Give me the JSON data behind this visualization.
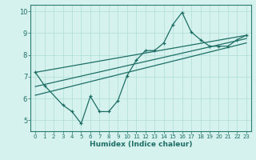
{
  "xlabel": "Humidex (Indice chaleur)",
  "background_color": "#d5f2ee",
  "line_color": "#1e6e65",
  "grid_color": "#b0ddd8",
  "spine_color": "#2a7a70",
  "xlim": [
    -0.5,
    23.5
  ],
  "ylim": [
    4.5,
    10.3
  ],
  "yticks": [
    5,
    6,
    7,
    8,
    9,
    10
  ],
  "xticks": [
    0,
    1,
    2,
    3,
    4,
    5,
    6,
    7,
    8,
    9,
    10,
    11,
    12,
    13,
    14,
    15,
    16,
    17,
    18,
    19,
    20,
    21,
    22,
    23
  ],
  "series1_x": [
    0,
    1,
    3,
    4,
    5,
    6,
    7,
    8,
    9,
    10,
    11,
    12,
    13,
    14,
    15,
    16,
    17,
    18,
    19,
    20,
    21,
    22,
    23
  ],
  "series1_y": [
    7.2,
    6.6,
    5.7,
    5.4,
    4.85,
    6.1,
    5.4,
    5.4,
    5.9,
    7.05,
    7.75,
    8.2,
    8.2,
    8.55,
    9.4,
    9.95,
    9.05,
    8.7,
    8.4,
    8.4,
    8.4,
    8.7,
    8.9
  ],
  "line2_x": [
    0,
    23
  ],
  "line2_y": [
    7.2,
    8.9
  ],
  "line3_x": [
    0,
    23
  ],
  "line3_y": [
    6.55,
    8.75
  ],
  "line4_x": [
    0,
    23
  ],
  "line4_y": [
    6.15,
    8.55
  ]
}
